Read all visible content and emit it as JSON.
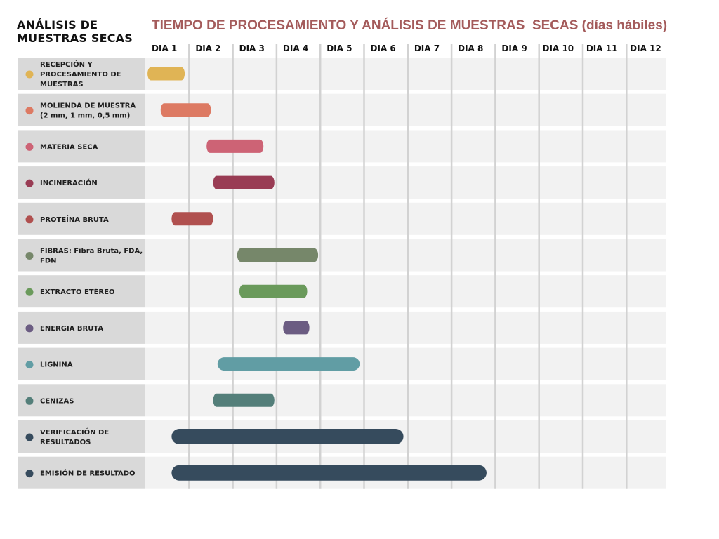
{
  "left_title": "ANÁLISIS DE\nMUESTRAS SECAS",
  "chart_data": {
    "type": "gantt",
    "title": "TIEMPO DE PROCESAMIENTO Y ANÁLISIS DE MUESTRAS  SECAS (días hábiles)",
    "columns": [
      "DIA 1",
      "DIA 2",
      "DIA 3",
      "DIA 4",
      "DIA 5",
      "DIA 6",
      "DIA 7",
      "DIA 8",
      "DIA 9",
      "DIA 10",
      "DIA 11",
      "DIA 12"
    ],
    "tasks": [
      {
        "label": "RECEPCIÓN Y\nPROCESAMIENTO DE\nMUESTRAS",
        "start": 0.05,
        "end": 0.9,
        "color": "#e0b455"
      },
      {
        "label": "MOLIENDA DE MUESTRA\n(2 mm, 1 mm, 0,5 mm)",
        "start": 0.35,
        "end": 1.5,
        "color": "#dd7a63"
      },
      {
        "label": "MATERIA SECA",
        "start": 1.4,
        "end": 2.7,
        "color": "#cd6375"
      },
      {
        "label": "INCINERACIÓN",
        "start": 1.55,
        "end": 2.95,
        "color": "#993c54"
      },
      {
        "label": "PROTEÍNA BRUTA",
        "start": 0.6,
        "end": 1.55,
        "color": "#b0504f"
      },
      {
        "label": "FIBRAS: Fibra Bruta, FDA,\nFDN",
        "start": 2.1,
        "end": 3.95,
        "color": "#76876a"
      },
      {
        "label": "EXTRACTO ETÉREO",
        "start": 2.15,
        "end": 3.7,
        "color": "#6a9a5b"
      },
      {
        "label": "ENERGIA BRUTA",
        "start": 3.15,
        "end": 3.75,
        "color": "#6b5c82"
      },
      {
        "label": "LIGNINA",
        "start": 1.65,
        "end": 4.9,
        "color": "#619da4"
      },
      {
        "label": "CENIZAS",
        "start": 1.55,
        "end": 2.95,
        "color": "#547f7a"
      },
      {
        "label": "VERIFICACIÓN DE\nRESULTADOS",
        "start": 0.6,
        "end": 5.9,
        "color": "#364b5d"
      },
      {
        "label": "EMISIÓN DE RESULTADO",
        "start": 0.6,
        "end": 7.8,
        "color": "#364b5d"
      }
    ]
  }
}
